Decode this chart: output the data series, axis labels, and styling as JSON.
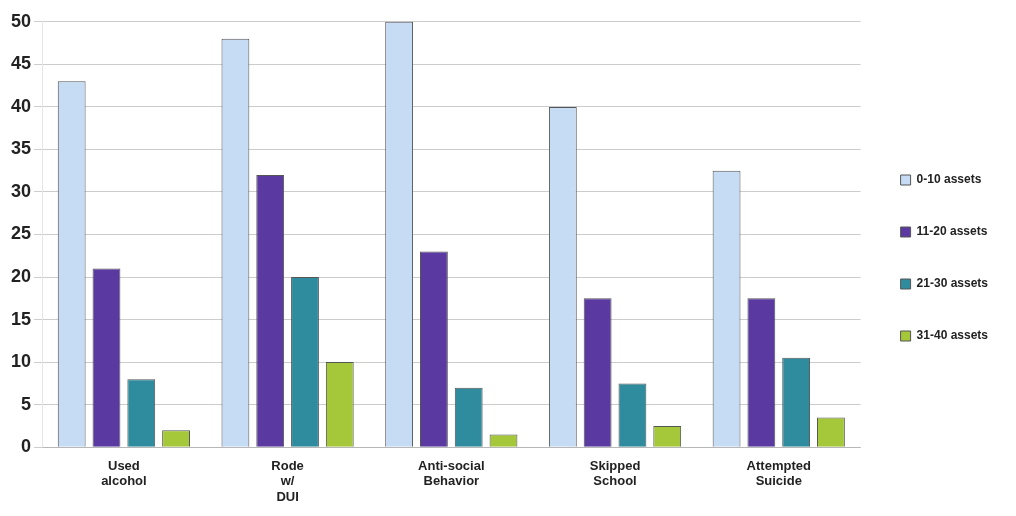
{
  "chart_data": {
    "type": "bar",
    "categories": [
      "Used alcohol",
      "Rode w/ DUI",
      "Anti-social Behavior",
      "Skipped School",
      "Attempted Suicide"
    ],
    "series": [
      {
        "name": "0-10 assets",
        "color": "#c6dcf5",
        "values": [
          43,
          48,
          50,
          40,
          32.5
        ]
      },
      {
        "name": "11-20 assets",
        "color": "#5a3aa0",
        "values": [
          21,
          32,
          23,
          17.5,
          17.5
        ]
      },
      {
        "name": "21-30 assets",
        "color": "#2e8c9e",
        "values": [
          8,
          20,
          7,
          7.5,
          10.5
        ]
      },
      {
        "name": "31-40 assets",
        "color": "#a4c83a",
        "values": [
          2,
          10,
          1.5,
          2.5,
          3.5
        ]
      }
    ],
    "ylim": [
      0,
      50
    ],
    "yticks": [
      0,
      5,
      10,
      15,
      20,
      25,
      30,
      35,
      40,
      45,
      50
    ],
    "grid": "y",
    "legend": "right"
  }
}
